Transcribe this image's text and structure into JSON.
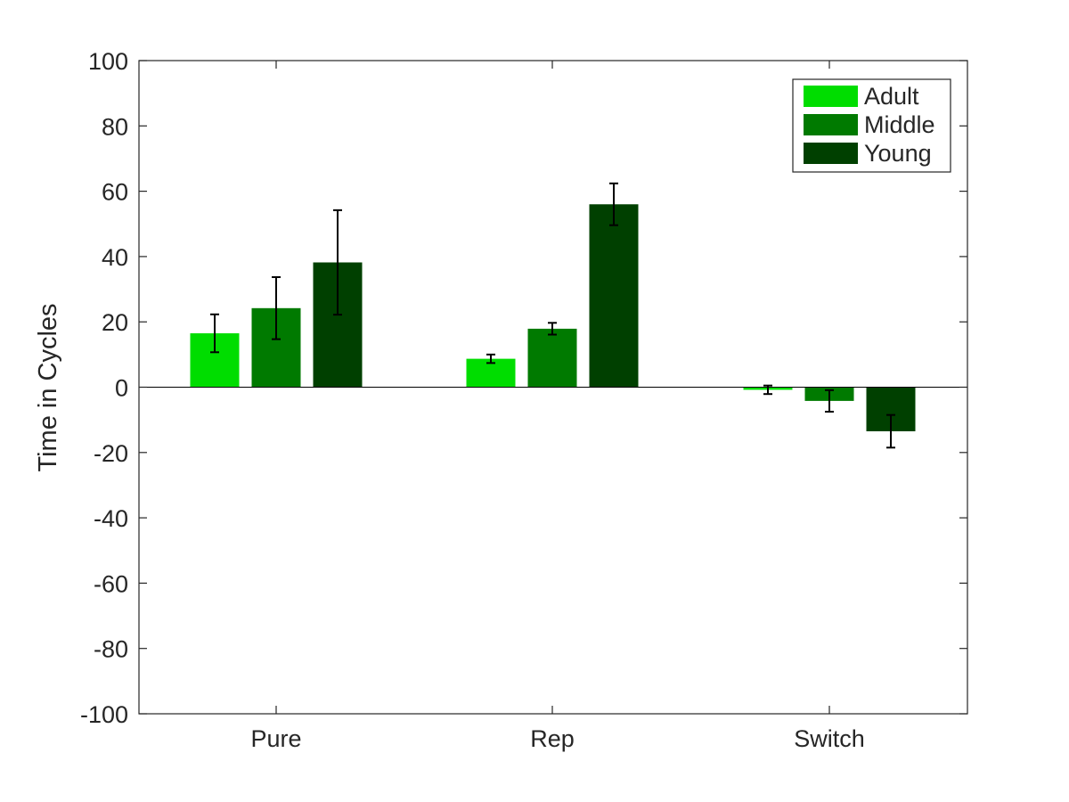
{
  "chart_data": {
    "type": "bar",
    "categories": [
      "Pure",
      "Rep",
      "Switch"
    ],
    "ylabel": "Time in Cycles",
    "xlabel": "",
    "title": "",
    "ylim": [
      -100,
      100
    ],
    "yticks": [
      -100,
      -80,
      -60,
      -40,
      -20,
      0,
      20,
      40,
      60,
      80,
      100
    ],
    "grid": false,
    "legend_position": "top-right",
    "series": [
      {
        "name": "Adult",
        "color": "#00dd00",
        "values": [
          16.5,
          8.7,
          -0.8
        ],
        "errors": [
          5.8,
          1.3,
          1.3
        ]
      },
      {
        "name": "Middle",
        "color": "#007a00",
        "values": [
          24.2,
          17.9,
          -4.2
        ],
        "errors": [
          9.5,
          1.8,
          3.3
        ]
      },
      {
        "name": "Young",
        "color": "#004000",
        "values": [
          38.2,
          56.0,
          -13.5
        ],
        "errors": [
          16.0,
          6.4,
          5.0
        ]
      }
    ]
  }
}
